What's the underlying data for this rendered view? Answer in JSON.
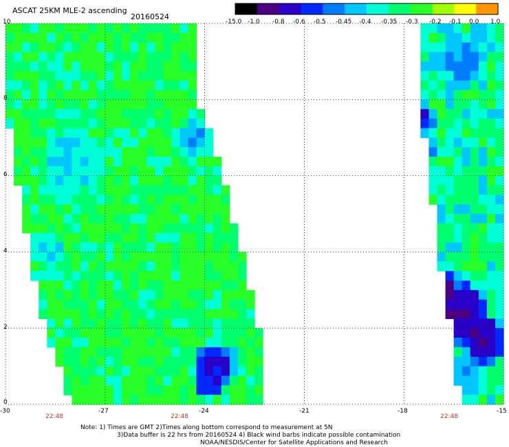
{
  "header": {
    "title": "ASCAT 25KM MLE-2 ascending",
    "date": "20160524"
  },
  "colorbar": {
    "labels": [
      "-15.0",
      "-1.0",
      "-0.8",
      "-0.6",
      "-0.5",
      "-0.45",
      "-0.4",
      "-0.35",
      "-0.3",
      "-0.2",
      "-0.1",
      "0.0",
      "1.0"
    ],
    "colors": [
      "#000000",
      "#4b0082",
      "#2800c8",
      "#0028ff",
      "#007dff",
      "#00c8ff",
      "#00ffd7",
      "#00ff6e",
      "#28ff28",
      "#a0ff00",
      "#ffff00",
      "#ff9600",
      "#ff1e00"
    ]
  },
  "axes": {
    "x_ticks": [
      "-30",
      "-27",
      "-24",
      "-21",
      "-18",
      "-15"
    ],
    "y_ticks": [
      "10",
      "8",
      "6",
      "4",
      "2",
      "0"
    ],
    "times": [
      "22:48",
      "22:48",
      "22:48"
    ]
  },
  "notes": {
    "line1": "Note: 1) Times are GMT 2)Times along bottom correspond to measurement at 5N",
    "line2": "3)Data buffer is 22 hrs from 20160524 4) Black wind barbs indicate possible contamination",
    "line3": "NOAA/NESDIS/Center for Satellite Applications and Research"
  },
  "chart_data": {
    "type": "heatmap",
    "x_range": [
      -30,
      -15
    ],
    "y_range": [
      0,
      10
    ],
    "x_ticks": [
      -30,
      -27,
      -24,
      -21,
      -18,
      -15
    ],
    "y_ticks": [
      0,
      2,
      4,
      6,
      8,
      10
    ],
    "grid": true,
    "colorscale_breaks": [
      -15.0,
      -1.0,
      -0.8,
      -0.6,
      -0.5,
      -0.45,
      -0.4,
      -0.35,
      -0.3,
      -0.2,
      -0.1,
      0.0,
      1.0
    ],
    "swaths": [
      {
        "edges": [
          [
            10,
            -30.0,
            -24.5
          ],
          [
            8,
            -30.0,
            -24.3
          ],
          [
            6,
            -29.7,
            -23.6
          ],
          [
            4,
            -29.3,
            -23.0
          ],
          [
            2,
            -28.8,
            -22.5
          ],
          [
            0,
            -28.0,
            -22.3
          ]
        ],
        "base_value": -0.3,
        "time": "22:48",
        "features": [
          {
            "lon": -23.7,
            "lat": 1.0,
            "radius": 0.8,
            "value": -0.6
          },
          {
            "lon": -23.9,
            "lat": 0.5,
            "radius": 0.5,
            "value": -0.6
          },
          {
            "lon": -24.3,
            "lat": 7.0,
            "radius": 0.7,
            "value": -0.45
          },
          {
            "lon": -28.0,
            "lat": 6.4,
            "radius": 1.3,
            "value": -0.4
          },
          {
            "lon": -28.7,
            "lat": 4.0,
            "radius": 0.6,
            "value": -0.4
          }
        ]
      },
      {
        "edges": [
          [
            10,
            -17.6,
            -15.0
          ],
          [
            8,
            -17.6,
            -15.0
          ],
          [
            6,
            -17.2,
            -15.0
          ],
          [
            4,
            -17.0,
            -15.0
          ],
          [
            2,
            -16.6,
            -15.0
          ],
          [
            0,
            -16.3,
            -15.0
          ]
        ],
        "base_value": -0.35,
        "time": "22:48",
        "features": [
          {
            "lon": -17.4,
            "lat": 7.5,
            "radius": 0.4,
            "value": -0.6
          },
          {
            "lon": -17.4,
            "lat": 6.7,
            "radius": 0.4,
            "value": -0.6
          },
          {
            "lon": -16.3,
            "lat": 2.4,
            "radius": 0.9,
            "value": -0.8
          },
          {
            "lon": -15.6,
            "lat": 1.7,
            "radius": 0.7,
            "value": -0.8
          },
          {
            "lon": -16.8,
            "lat": 3.1,
            "radius": 0.4,
            "value": -1.0
          },
          {
            "lon": -16.2,
            "lat": 0.7,
            "radius": 0.7,
            "value": -0.45
          },
          {
            "lon": -16.3,
            "lat": 9.0,
            "radius": 0.9,
            "value": -0.45
          }
        ]
      }
    ]
  }
}
